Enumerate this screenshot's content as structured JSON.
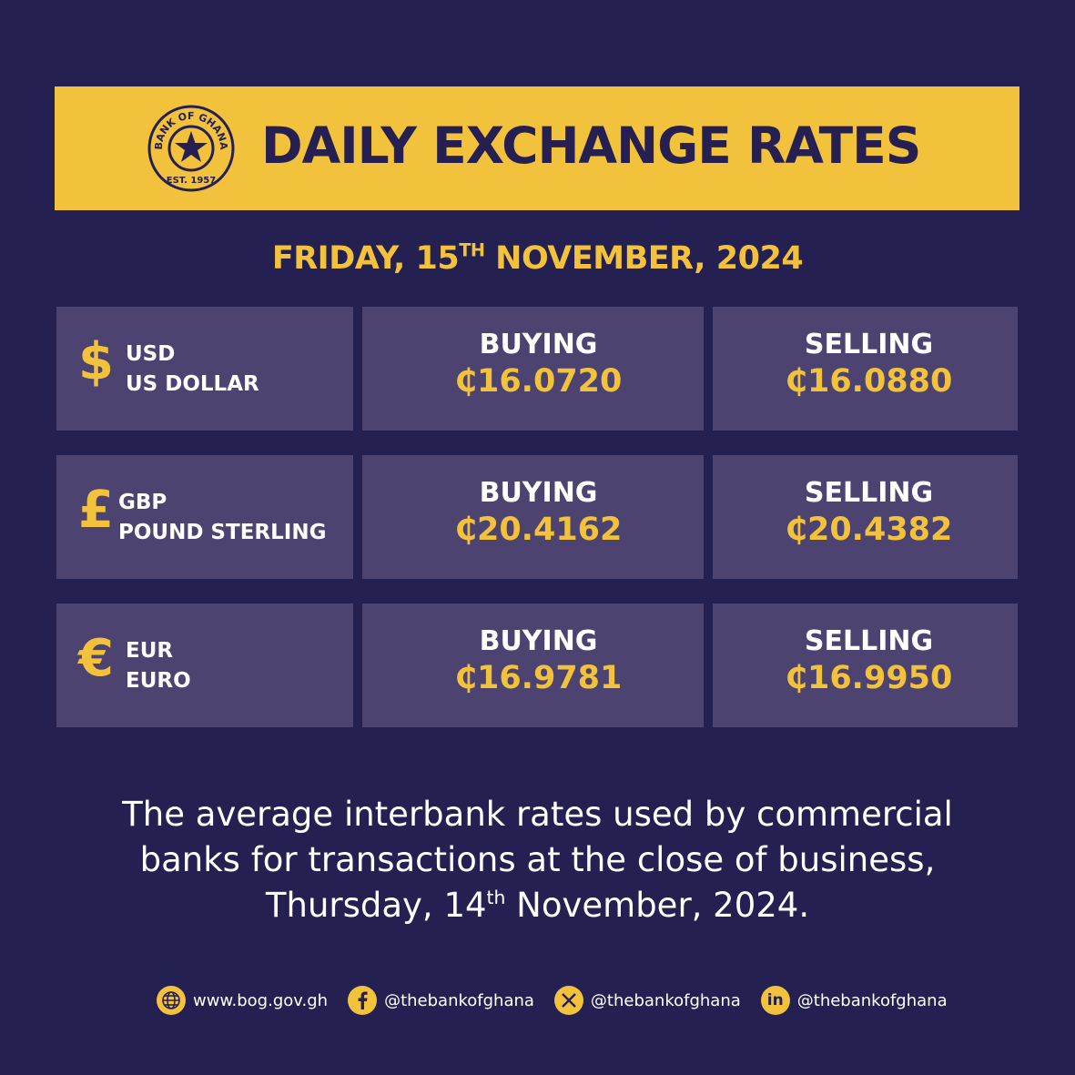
{
  "header": {
    "title": "DAILY EXCHANGE RATES",
    "logo_top": "BANK OF GHANA",
    "logo_bottom": "EST. 1957"
  },
  "date": {
    "before": "FRIDAY, 15",
    "sup": "TH",
    "after": " NOVEMBER, 2024"
  },
  "rows": [
    {
      "symbol": "$",
      "code": "USD",
      "name": "US DOLLAR",
      "buy_label": "BUYING",
      "buy": "₵16.0720",
      "sell_label": "SELLING",
      "sell": "₵16.0880"
    },
    {
      "symbol": "£",
      "code": "GBP",
      "name": "POUND STERLING",
      "buy_label": "BUYING",
      "buy": "₵20.4162",
      "sell_label": "SELLING",
      "sell": "₵20.4382"
    },
    {
      "symbol": "€",
      "code": "EUR",
      "name": "EURO",
      "buy_label": "BUYING",
      "buy": "₵16.9781",
      "sell_label": "SELLING",
      "sell": "₵16.9950"
    }
  ],
  "note": {
    "line1": "The average interbank rates used by commercial",
    "line2": "banks for transactions at the close of business,",
    "line3_before": "Thursday, 14",
    "line3_sup": "th",
    "line3_after": " November, 2024."
  },
  "footer": {
    "website": "www.bog.gov.gh",
    "facebook": "@thebankofghana",
    "x": "@thebankofghana",
    "linkedin_icon": "in",
    "linkedin": "@thebankofghana"
  }
}
